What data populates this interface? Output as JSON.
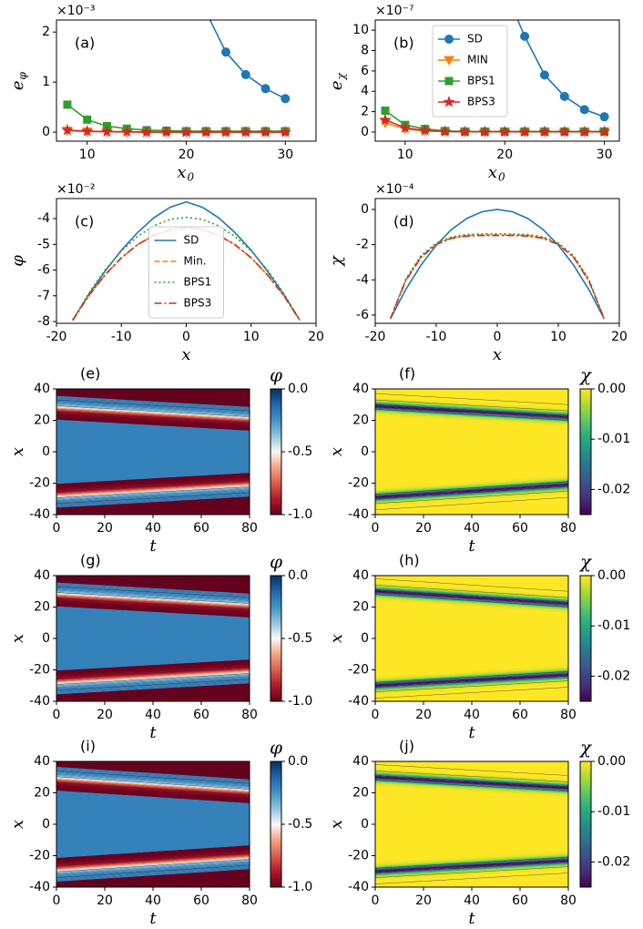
{
  "chart_data": [
    {
      "type": "line",
      "panel_label": "(a)",
      "offset_text": "×10⁻³",
      "xlabel": "x",
      "xlabel_sub": "0",
      "ylabel": "e",
      "ylabel_sub": "φ",
      "x": [
        8,
        10,
        12,
        14,
        16,
        18,
        20,
        22,
        24,
        26,
        28,
        30
      ],
      "xlim": [
        6.9,
        33.1
      ],
      "xticks": [
        10,
        20,
        30
      ],
      "ylim": [
        -0.18,
        2.24
      ],
      "yticks": [
        0,
        1,
        2
      ],
      "series": [
        {
          "name": "SD",
          "color": "#1f77b4",
          "marker": "circle",
          "values": [
            null,
            null,
            null,
            null,
            null,
            null,
            null,
            2.4,
            1.6,
            1.15,
            0.87,
            0.67
          ]
        },
        {
          "name": "MIN",
          "color": "#ff7f0e",
          "marker": "triangle",
          "values": [
            0.03,
            0.01,
            0.01,
            0,
            0,
            0,
            0,
            0,
            0,
            0,
            0,
            0
          ]
        },
        {
          "name": "BPS1",
          "color": "#2ca02c",
          "marker": "square",
          "values": [
            0.55,
            0.25,
            0.12,
            0.07,
            0.04,
            0.03,
            0.02,
            0.02,
            0.02,
            0.02,
            0.02,
            0.02
          ]
        },
        {
          "name": "BPS3",
          "color": "#d62728",
          "marker": "star",
          "values": [
            0.04,
            0.02,
            0.01,
            0.01,
            0,
            0,
            0,
            0,
            0,
            0,
            0,
            0
          ]
        }
      ]
    },
    {
      "type": "line",
      "panel_label": "(b)",
      "offset_text": "×10⁻⁷",
      "xlabel": "x",
      "xlabel_sub": "0",
      "ylabel": "e",
      "ylabel_sub": "χ",
      "legend": "upper center",
      "x": [
        8,
        10,
        12,
        14,
        16,
        18,
        20,
        22,
        24,
        26,
        28,
        30
      ],
      "xlim": [
        7.0,
        31.5
      ],
      "xticks": [
        10,
        20,
        30
      ],
      "ylim": [
        -0.9,
        11
      ],
      "yticks": [
        0,
        2,
        4,
        6,
        8,
        10
      ],
      "series": [
        {
          "name": "SD",
          "color": "#1f77b4",
          "marker": "circle",
          "values": [
            null,
            null,
            null,
            null,
            null,
            null,
            14,
            9.4,
            5.6,
            3.5,
            2.2,
            1.5
          ]
        },
        {
          "name": "MIN",
          "color": "#ff7f0e",
          "marker": "triangle",
          "values": [
            0.9,
            0.3,
            0.1,
            0.05,
            0.02,
            0.02,
            0.02,
            0.02,
            0.02,
            0.02,
            0.02,
            0.02
          ]
        },
        {
          "name": "BPS1",
          "color": "#2ca02c",
          "marker": "square",
          "values": [
            2.1,
            0.7,
            0.3,
            0.1,
            0.05,
            0.05,
            0.05,
            0.05,
            0.05,
            0.05,
            0.05,
            0.05
          ]
        },
        {
          "name": "BPS3",
          "color": "#d62728",
          "marker": "star",
          "values": [
            1.2,
            0.4,
            0.15,
            0.05,
            0.02,
            0.02,
            0.02,
            0.02,
            0.02,
            0.02,
            0.02,
            0.02
          ]
        }
      ]
    },
    {
      "type": "line",
      "panel_label": "(c)",
      "offset_text": "×10⁻²",
      "xlabel": "x",
      "ylabel": "φ",
      "legend": "lower center",
      "x": [
        -17.5,
        -15,
        -12.5,
        -10,
        -7.5,
        -5,
        -2.5,
        0,
        2.5,
        5,
        7.5,
        10,
        12.5,
        15,
        17.5
      ],
      "xlim": [
        -20,
        20
      ],
      "xticks": [
        -20,
        -10,
        0,
        10,
        20
      ],
      "ylim": [
        -8.07,
        -3.22
      ],
      "yticks": [
        -8,
        -7,
        -6,
        -5,
        -4
      ],
      "series": [
        {
          "name": "SD",
          "color": "#1f77b4",
          "dash": "solid",
          "values": [
            -7.95,
            -6.94,
            -6.04,
            -5.23,
            -4.54,
            -3.97,
            -3.56,
            -3.35,
            -3.56,
            -3.97,
            -4.54,
            -5.23,
            -6.04,
            -6.94,
            -7.95
          ]
        },
        {
          "name": "Min.",
          "color": "#ff7f0e",
          "dash": "dashed",
          "values": [
            -7.95,
            -6.99,
            -6.19,
            -5.53,
            -5.01,
            -4.65,
            -4.42,
            -4.35,
            -4.42,
            -4.65,
            -5.01,
            -5.53,
            -6.19,
            -6.99,
            -7.95
          ]
        },
        {
          "name": "BPS1",
          "color": "#2ca02c",
          "dash": "dotted",
          "values": [
            -7.95,
            -6.89,
            -5.99,
            -5.26,
            -4.69,
            -4.28,
            -4.03,
            -3.95,
            -4.03,
            -4.28,
            -4.69,
            -5.26,
            -5.99,
            -6.89,
            -7.95
          ]
        },
        {
          "name": "BPS3",
          "color": "#d62728",
          "dash": "dashdot",
          "values": [
            -7.95,
            -6.98,
            -6.18,
            -5.52,
            -5.01,
            -4.65,
            -4.42,
            -4.36,
            -4.42,
            -4.65,
            -5.01,
            -5.52,
            -6.18,
            -6.98,
            -7.95
          ]
        }
      ]
    },
    {
      "type": "line",
      "panel_label": "(d)",
      "offset_text": "×10⁻⁴",
      "xlabel": "x",
      "ylabel": "χ",
      "x": [
        -17.5,
        -15,
        -12.5,
        -10,
        -7.5,
        -5,
        -2.5,
        0,
        2.5,
        5,
        7.5,
        10,
        12.5,
        15,
        17.5
      ],
      "xlim": [
        -20,
        20
      ],
      "xticks": [
        -20,
        -10,
        0,
        10,
        20
      ],
      "ylim": [
        -6.47,
        0.62
      ],
      "yticks": [
        -6,
        -4,
        -2,
        0
      ],
      "series": [
        {
          "name": "SD",
          "color": "#1f77b4",
          "dash": "solid",
          "values": [
            -6.2,
            -4.55,
            -3.16,
            -2.03,
            -1.14,
            -0.51,
            -0.13,
            0,
            -0.13,
            -0.51,
            -1.14,
            -2.03,
            -3.16,
            -4.55,
            -6.2
          ]
        },
        {
          "name": "Min.",
          "color": "#ff7f0e",
          "dash": "dashed",
          "values": [
            -6.2,
            -4.02,
            -2.69,
            -1.96,
            -1.61,
            -1.48,
            -1.45,
            -1.45,
            -1.45,
            -1.48,
            -1.61,
            -1.96,
            -2.69,
            -4.02,
            -6.2
          ]
        },
        {
          "name": "BPS1",
          "color": "#2ca02c",
          "dash": "dotted",
          "values": [
            -6.2,
            -3.95,
            -2.62,
            -1.9,
            -1.55,
            -1.42,
            -1.39,
            -1.39,
            -1.39,
            -1.42,
            -1.55,
            -1.9,
            -2.62,
            -3.95,
            -6.2
          ]
        },
        {
          "name": "BPS3",
          "color": "#d62728",
          "dash": "dashdot",
          "values": [
            -6.2,
            -4.05,
            -2.72,
            -1.99,
            -1.64,
            -1.51,
            -1.48,
            -1.48,
            -1.48,
            -1.51,
            -1.64,
            -1.99,
            -2.72,
            -4.05,
            -6.2
          ]
        }
      ]
    },
    {
      "type": "heatmap",
      "panel_label": "(e)",
      "xlabel": "t",
      "ylabel": "x",
      "colorbar_label": "φ",
      "xlim": [
        0,
        80
      ],
      "xticks": [
        0,
        20,
        40,
        60,
        80
      ],
      "ylim": [
        -40,
        40
      ],
      "yticks": [
        -40,
        -20,
        0,
        20,
        40
      ],
      "zlim": [
        -1,
        0
      ],
      "zticks": [
        {
          "value": 0,
          "label": "0.0"
        },
        -0.5,
        {
          "value": -1,
          "label": "-1.0"
        }
      ],
      "colormap": [
        "#67001f",
        "#b2182b",
        "#d6604d",
        "#f4a582",
        "#f7f7f7",
        "#92c5de",
        "#4393c3",
        "#2166ac",
        "#053061"
      ],
      "t": [
        0,
        80
      ],
      "upper_wall": [
        28,
        21
      ],
      "lower_wall": [
        -28,
        -21
      ],
      "wall_width": 2.5,
      "outside": -1,
      "inside": -0.2
    },
    {
      "type": "heatmap",
      "panel_label": "(f)",
      "xlabel": "t",
      "ylabel": "x",
      "colorbar_label": "χ",
      "xlim": [
        0,
        80
      ],
      "xticks": [
        0,
        20,
        40,
        60,
        80
      ],
      "ylim": [
        -40,
        40
      ],
      "yticks": [
        -40,
        -20,
        0,
        20,
        40
      ],
      "zlim": [
        -0.025,
        0
      ],
      "zticks": [
        {
          "value": 0,
          "label": "0.00"
        },
        -0.01,
        -0.02
      ],
      "colormap": [
        "#440154",
        "#472d7b",
        "#3b528b",
        "#2c728e",
        "#21918c",
        "#28ae80",
        "#5ec962",
        "#addc30",
        "#fde725"
      ],
      "t": [
        0,
        80
      ],
      "upper_wall": [
        29,
        22
      ],
      "lower_wall": [
        -29,
        -21
      ],
      "wall_width": 2,
      "outside": 0,
      "inside": 0,
      "wall_core": -0.025
    },
    {
      "type": "heatmap",
      "panel_label": "(g)",
      "xlabel": "t",
      "ylabel": "x",
      "colorbar_label": "φ",
      "xlim": [
        0,
        80
      ],
      "xticks": [
        0,
        20,
        40,
        60,
        80
      ],
      "ylim": [
        -40,
        40
      ],
      "yticks": [
        -40,
        -20,
        0,
        20,
        40
      ],
      "zlim": [
        -1,
        0
      ],
      "zticks": [
        {
          "value": 0,
          "label": "0.0"
        },
        -0.5,
        {
          "value": -1,
          "label": "-1.0"
        }
      ],
      "colormap": [
        "#67001f",
        "#b2182b",
        "#d6604d",
        "#f4a582",
        "#f7f7f7",
        "#92c5de",
        "#4393c3",
        "#2166ac",
        "#053061"
      ],
      "t": [
        0,
        80
      ],
      "upper_wall": [
        28,
        21
      ],
      "lower_wall": [
        -28,
        -21
      ],
      "wall_width": 2.5,
      "outside": -1,
      "inside": -0.2
    },
    {
      "type": "heatmap",
      "panel_label": "(h)",
      "xlabel": "t",
      "ylabel": "x",
      "colorbar_label": "χ",
      "xlim": [
        0,
        80
      ],
      "xticks": [
        0,
        20,
        40,
        60,
        80
      ],
      "ylim": [
        -40,
        40
      ],
      "yticks": [
        -40,
        -20,
        0,
        20,
        40
      ],
      "zlim": [
        -0.025,
        0
      ],
      "zticks": [
        {
          "value": 0,
          "label": "0.00"
        },
        -0.01,
        -0.02
      ],
      "colormap": [
        "#440154",
        "#472d7b",
        "#3b528b",
        "#2c728e",
        "#21918c",
        "#28ae80",
        "#5ec962",
        "#addc30",
        "#fde725"
      ],
      "t": [
        0,
        80
      ],
      "upper_wall": [
        30,
        22
      ],
      "lower_wall": [
        -30,
        -23
      ],
      "wall_width": 2,
      "outside": 0,
      "inside": 0,
      "wall_core": -0.025
    },
    {
      "type": "heatmap",
      "panel_label": "(i)",
      "xlabel": "t",
      "ylabel": "x",
      "colorbar_label": "φ",
      "xlim": [
        0,
        80
      ],
      "xticks": [
        0,
        20,
        40,
        60,
        80
      ],
      "ylim": [
        -40,
        40
      ],
      "yticks": [
        -40,
        -20,
        0,
        20,
        40
      ],
      "zlim": [
        -1,
        0
      ],
      "zticks": [
        {
          "value": 0,
          "label": "0.0"
        },
        -0.5,
        {
          "value": -1,
          "label": "-1.0"
        }
      ],
      "colormap": [
        "#67001f",
        "#b2182b",
        "#d6604d",
        "#f4a582",
        "#f7f7f7",
        "#92c5de",
        "#4393c3",
        "#2166ac",
        "#053061"
      ],
      "t": [
        0,
        80
      ],
      "upper_wall": [
        29,
        21
      ],
      "lower_wall": [
        -29,
        -21
      ],
      "wall_width": 2.5,
      "outside": -1,
      "inside": -0.2
    },
    {
      "type": "heatmap",
      "panel_label": "(j)",
      "xlabel": "t",
      "ylabel": "x",
      "colorbar_label": "χ",
      "xlim": [
        0,
        80
      ],
      "xticks": [
        0,
        20,
        40,
        60,
        80
      ],
      "ylim": [
        -40,
        40
      ],
      "yticks": [
        -40,
        -20,
        0,
        20,
        40
      ],
      "zlim": [
        -0.025,
        0
      ],
      "zticks": [
        {
          "value": 0,
          "label": "0.00"
        },
        -0.01,
        -0.02
      ],
      "colormap": [
        "#440154",
        "#472d7b",
        "#3b528b",
        "#2c728e",
        "#21918c",
        "#28ae80",
        "#5ec962",
        "#addc30",
        "#fde725"
      ],
      "t": [
        0,
        80
      ],
      "upper_wall": [
        30,
        23
      ],
      "lower_wall": [
        -30,
        -23
      ],
      "wall_width": 2,
      "outside": 0,
      "inside": 0,
      "wall_core": -0.025
    }
  ]
}
